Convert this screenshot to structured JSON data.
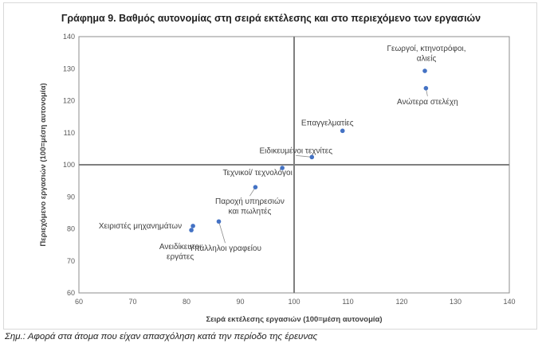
{
  "chart_data": {
    "type": "scatter",
    "title": "Γράφημα 9. Βαθμός αυτονομίας στη σειρά εκτέλεσης και στο περιεχόμενο των εργασιών",
    "xlabel": "Σειρά εκτέλεσης εργασιών (100=μέση  αυτονομία)",
    "ylabel": "Περιεχόμενο εργασιών (100=μέση αυτονομία)",
    "xlim": [
      60,
      140
    ],
    "ylim": [
      60,
      140
    ],
    "xticks": [
      60,
      70,
      80,
      90,
      100,
      110,
      120,
      130,
      140
    ],
    "yticks": [
      60,
      70,
      80,
      90,
      100,
      110,
      120,
      130,
      140
    ],
    "reference_lines": {
      "x": 100,
      "y": 100
    },
    "color": "#4472c4",
    "points": [
      {
        "label": [
          "Γεωργοί, κτηνοτρόφοι,",
          "αλιείς"
        ],
        "x": 124.3,
        "y": 129.3
      },
      {
        "label": [
          "Ανώτερα στελέχη"
        ],
        "x": 124.5,
        "y": 123.9
      },
      {
        "label": [
          "Επαγγελματίες"
        ],
        "x": 109.0,
        "y": 110.6
      },
      {
        "label": [
          "Ειδικευμένοι τεχνίτες"
        ],
        "x": 103.3,
        "y": 102.4
      },
      {
        "label": [
          "Τεχνικοί/ τεχνολόγοι"
        ],
        "x": 97.8,
        "y": 99.0
      },
      {
        "label": [
          "Παροχή υπηρεσιών",
          "και πωλητές"
        ],
        "x": 92.8,
        "y": 93.0
      },
      {
        "label": [
          "Υπάλληλοι γραφείου"
        ],
        "x": 86.0,
        "y": 82.3
      },
      {
        "label": [
          "Χειριστές μηχανημάτων"
        ],
        "x": 81.2,
        "y": 80.9
      },
      {
        "label": [
          "Ανειδίκευτοι",
          "εργάτες"
        ],
        "x": 80.9,
        "y": 79.6
      }
    ]
  },
  "note": "Σημ.: Αφορά στα άτομα που είχαν απασχόληση κατά την περίοδο της έρευνας"
}
